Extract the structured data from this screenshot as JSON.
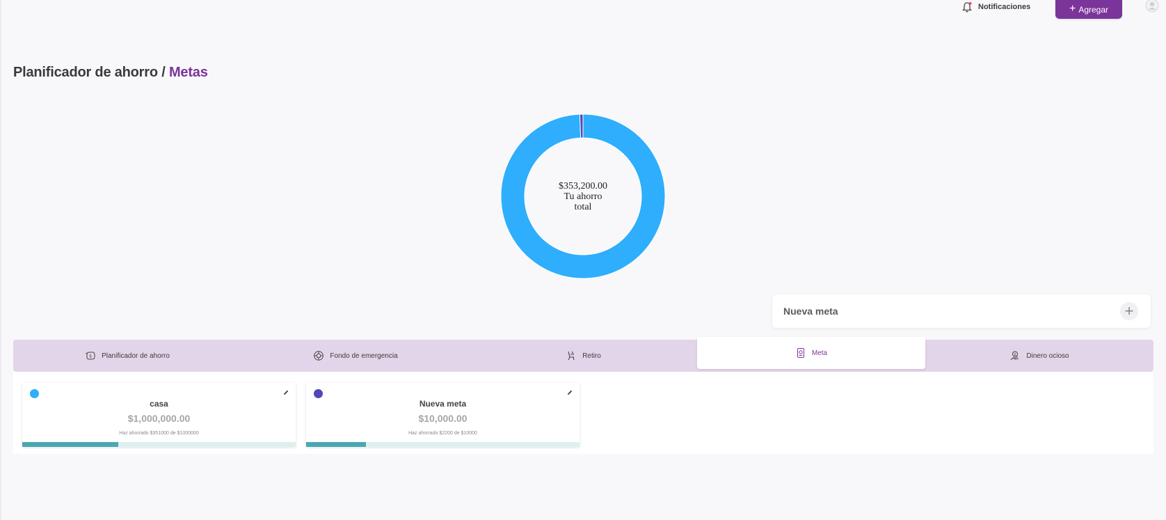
{
  "header": {
    "notifications_label": "Notificaciones",
    "notifications_icon": "bell-icon",
    "add_button_label": "Agregar",
    "avatar_icon": "user-avatar-icon"
  },
  "page": {
    "title_prefix": "Planificador de ahorro /",
    "title_accent": "Metas"
  },
  "summary": {
    "total_amount": "$353,200.00",
    "total_caption": "Tu ahorro total",
    "segments": [
      {
        "name": "casa",
        "value": 351000,
        "color": "#2eaefc"
      },
      {
        "name": "Nueva meta",
        "value": 2200,
        "color": "#5347b8"
      }
    ]
  },
  "new_goal": {
    "label": "Nueva meta",
    "icon": "plus-icon"
  },
  "tabs": [
    {
      "label": "Planificador de ahorro",
      "icon": "piggy-bank-icon",
      "active": false
    },
    {
      "label": "Fondo de emergencia",
      "icon": "lifebuoy-icon",
      "active": false
    },
    {
      "label": "Retiro",
      "icon": "beach-chair-icon",
      "active": false
    },
    {
      "label": "Meta",
      "icon": "document-goal-icon",
      "active": true
    },
    {
      "label": "Dinero ocioso",
      "icon": "money-hand-icon",
      "active": false
    }
  ],
  "goals": [
    {
      "name": "casa",
      "amount": "$1,000,000.00",
      "saved_text": "Haz ahorrado $351000 de $1000000",
      "progress": 0.351,
      "color": "#2eaefc"
    },
    {
      "name": "Nueva meta",
      "amount": "$10,000.00",
      "saved_text": "Haz ahorrado $2200 de $10000",
      "progress": 0.22,
      "color": "#5347b8"
    }
  ],
  "colors": {
    "accent": "#7b3499",
    "tabs_bg": "#e3d5e9",
    "progress_fill": "#4aa8b2",
    "progress_track": "#dcf0f0"
  }
}
